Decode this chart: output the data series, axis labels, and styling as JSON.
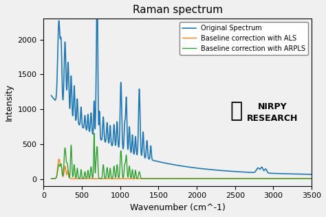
{
  "title": "Raman spectrum",
  "xlabel": "Wavenumber (cm^-1)",
  "ylabel": "Intensity",
  "xlim": [
    0,
    3500
  ],
  "ylim": [
    -100,
    2300
  ],
  "legend_labels": [
    "Original Spectrum",
    "Baseline correction with ALS",
    "Baseline correction with ARPLS"
  ],
  "line_colors": [
    "#1f77b4",
    "#ff7f0e",
    "#2ca02c"
  ],
  "background_color": "#f0f0f0",
  "nirpy_text": "NIRPY\nRESEARCH",
  "yticks": [
    0,
    500,
    1000,
    1500,
    2000
  ],
  "xticks": [
    0,
    500,
    1000,
    1500,
    2000,
    2500,
    3000,
    3500
  ]
}
